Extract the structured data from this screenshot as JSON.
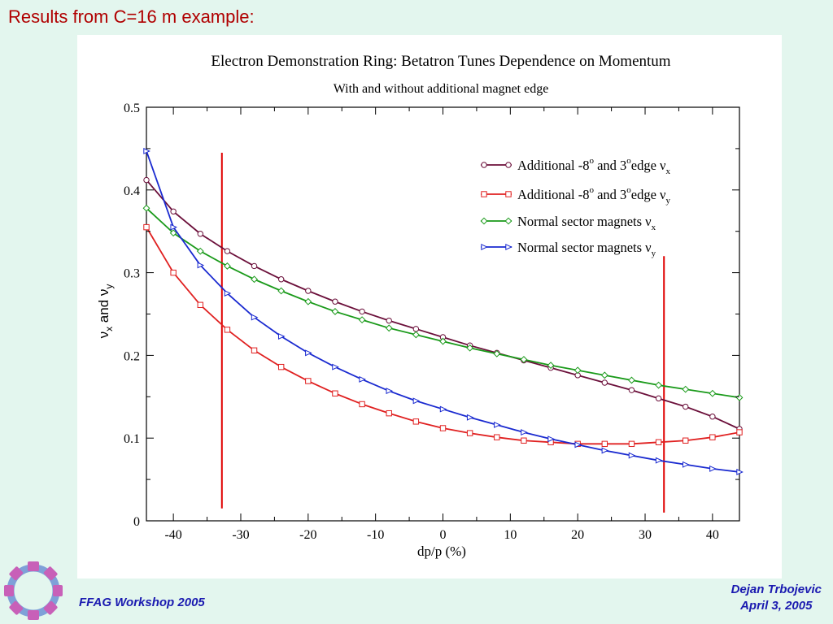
{
  "slide": {
    "title": "Results from C=16 m example:",
    "footer_left": "FFAG Workshop 2005",
    "footer_right_line1": "Dejan Trbojevic",
    "footer_right_line2": "April 3, 2005"
  },
  "chart_data": {
    "type": "line",
    "title": "Electron Demonstration Ring: Betatron Tunes Dependence on Momentum",
    "subtitle": "With and without additional magnet edge",
    "xlabel": "dp/p (%)",
    "ylabel": "ν_x and ν_y",
    "ylabel_parts": {
      "nu": "ν",
      "x": "x",
      "and": "and",
      "y": "y"
    },
    "xlim": [
      -44,
      44
    ],
    "ylim": [
      0,
      0.5
    ],
    "x_ticks": [
      -40,
      -30,
      -20,
      -10,
      0,
      10,
      20,
      30,
      40
    ],
    "y_ticks": [
      0,
      0.1,
      0.2,
      0.3,
      0.4,
      0.5
    ],
    "x_tick_labels": [
      "-40",
      "-30",
      "-20",
      "-10",
      "0",
      "10",
      "20",
      "30",
      "40"
    ],
    "y_tick_labels": [
      "0",
      "0.1",
      "0.2",
      "0.3",
      "0.4",
      "0.5"
    ],
    "legend_position": "top-right",
    "vertical_lines": [
      {
        "x": -32.8,
        "y_range": [
          0.015,
          0.445
        ],
        "color": "#e00000"
      },
      {
        "x": 32.8,
        "y_range": [
          0.01,
          0.32
        ],
        "color": "#e00000"
      }
    ],
    "x": [
      -44,
      -40,
      -36,
      -32,
      -28,
      -24,
      -20,
      -16,
      -12,
      -8,
      -4,
      0,
      4,
      8,
      12,
      16,
      20,
      24,
      28,
      32,
      36,
      40,
      44
    ],
    "series": [
      {
        "legend": {
          "main": "Additional -8",
          "sup1": "o",
          "mid": " and 3",
          "sup2": "o",
          "tail": "edge ν",
          "sub": "x"
        },
        "color": "#6b0f3a",
        "marker": "circle",
        "values": [
          0.412,
          0.374,
          0.347,
          0.326,
          0.308,
          0.292,
          0.278,
          0.265,
          0.253,
          0.242,
          0.232,
          0.222,
          0.212,
          0.203,
          0.194,
          0.185,
          0.176,
          0.167,
          0.158,
          0.148,
          0.138,
          0.126,
          0.111
        ]
      },
      {
        "legend": {
          "main": "Additional -8",
          "sup1": "o",
          "mid": " and 3",
          "sup2": "o",
          "tail": "edge ν",
          "sub": "y"
        },
        "color": "#e02020",
        "marker": "square",
        "values": [
          0.355,
          0.3,
          0.261,
          0.231,
          0.206,
          0.186,
          0.169,
          0.154,
          0.141,
          0.13,
          0.12,
          0.112,
          0.106,
          0.101,
          0.097,
          0.095,
          0.093,
          0.093,
          0.093,
          0.095,
          0.097,
          0.101,
          0.107
        ]
      },
      {
        "legend": {
          "main": "Normal sector magnets ν",
          "sub": "x"
        },
        "color": "#1a9a1a",
        "marker": "diamond",
        "values": [
          0.378,
          0.348,
          0.326,
          0.308,
          0.292,
          0.278,
          0.265,
          0.253,
          0.243,
          0.233,
          0.225,
          0.217,
          0.209,
          0.202,
          0.195,
          0.188,
          0.182,
          0.176,
          0.17,
          0.164,
          0.159,
          0.154,
          0.149
        ]
      },
      {
        "legend": {
          "main": "Normal sector magnets  ν",
          "sub": "y"
        },
        "color": "#1a2ad0",
        "marker": "triangle",
        "values": [
          0.447,
          0.355,
          0.309,
          0.275,
          0.246,
          0.223,
          0.203,
          0.186,
          0.171,
          0.157,
          0.145,
          0.135,
          0.125,
          0.116,
          0.107,
          0.099,
          0.092,
          0.085,
          0.079,
          0.073,
          0.068,
          0.063,
          0.059
        ]
      }
    ]
  }
}
